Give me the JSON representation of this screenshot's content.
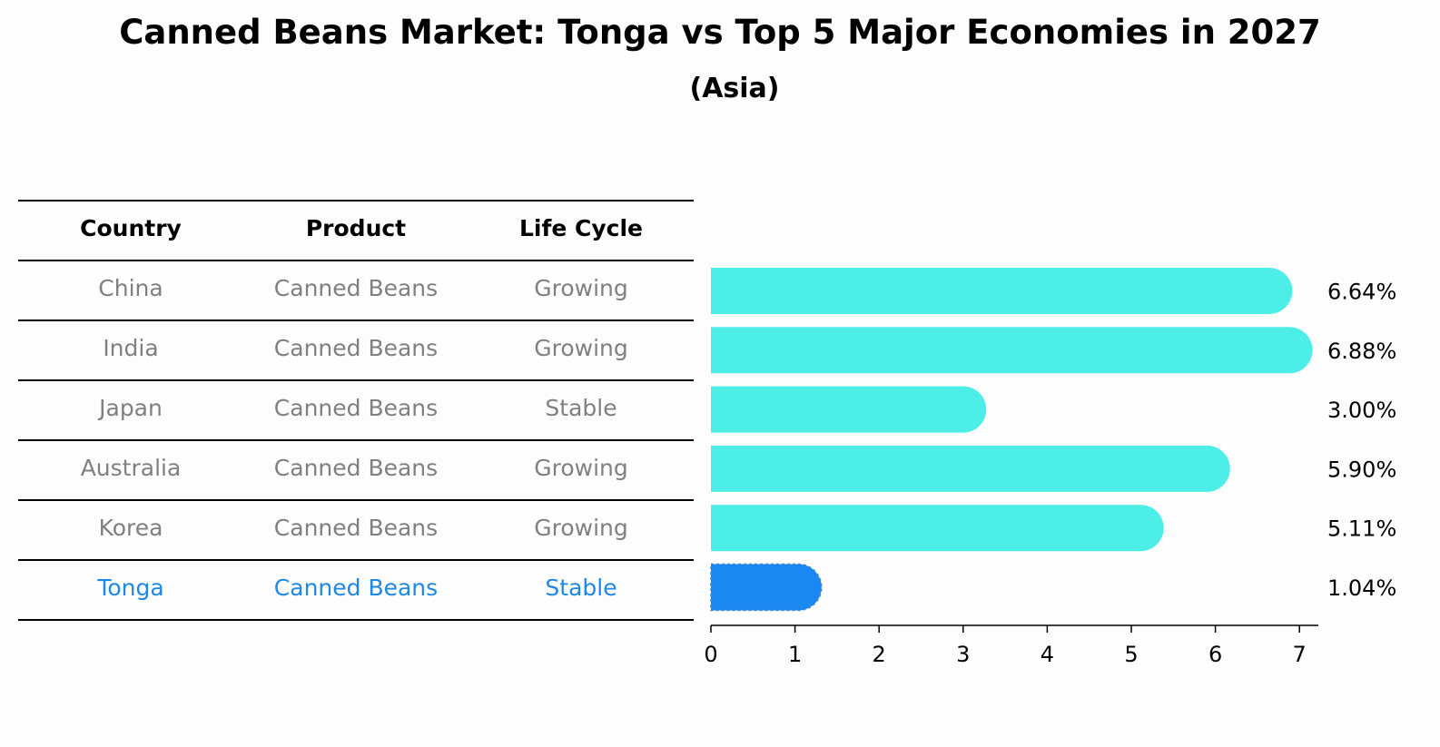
{
  "title": "Canned Beans Market: Tonga vs Top 5 Major Economies in 2027",
  "subtitle": "(Asia)",
  "table": {
    "headers": [
      "Country",
      "Product",
      "Life Cycle"
    ],
    "rows": [
      {
        "country": "China",
        "product": "Canned Beans",
        "life_cycle": "Growing"
      },
      {
        "country": "India",
        "product": "Canned Beans",
        "life_cycle": "Growing"
      },
      {
        "country": "Japan",
        "product": "Canned Beans",
        "life_cycle": "Stable"
      },
      {
        "country": "Australia",
        "product": "Canned Beans",
        "life_cycle": "Growing"
      },
      {
        "country": "Korea",
        "product": "Canned Beans",
        "life_cycle": "Growing"
      },
      {
        "country": "Tonga",
        "product": "Canned Beans",
        "life_cycle": "Stable"
      }
    ],
    "highlight_row": 5
  },
  "colors": {
    "bar": "#4DEDE8",
    "highlight_bar": "#1A87F3",
    "muted_text": "#808080",
    "highlight_text": "#1E88E5"
  },
  "chart_data": {
    "type": "bar",
    "orientation": "horizontal",
    "categories": [
      "China",
      "India",
      "Japan",
      "Australia",
      "Korea",
      "Tonga"
    ],
    "values": [
      6.64,
      6.88,
      3.0,
      5.9,
      5.11,
      1.04
    ],
    "value_labels": [
      "6.64%",
      "6.88%",
      "3.00%",
      "5.90%",
      "5.11%",
      "1.04%"
    ],
    "highlight_index": 5,
    "xlim": [
      0,
      7.2
    ],
    "xticks": [
      "0",
      "1",
      "2",
      "3",
      "4",
      "5",
      "6",
      "7"
    ]
  }
}
